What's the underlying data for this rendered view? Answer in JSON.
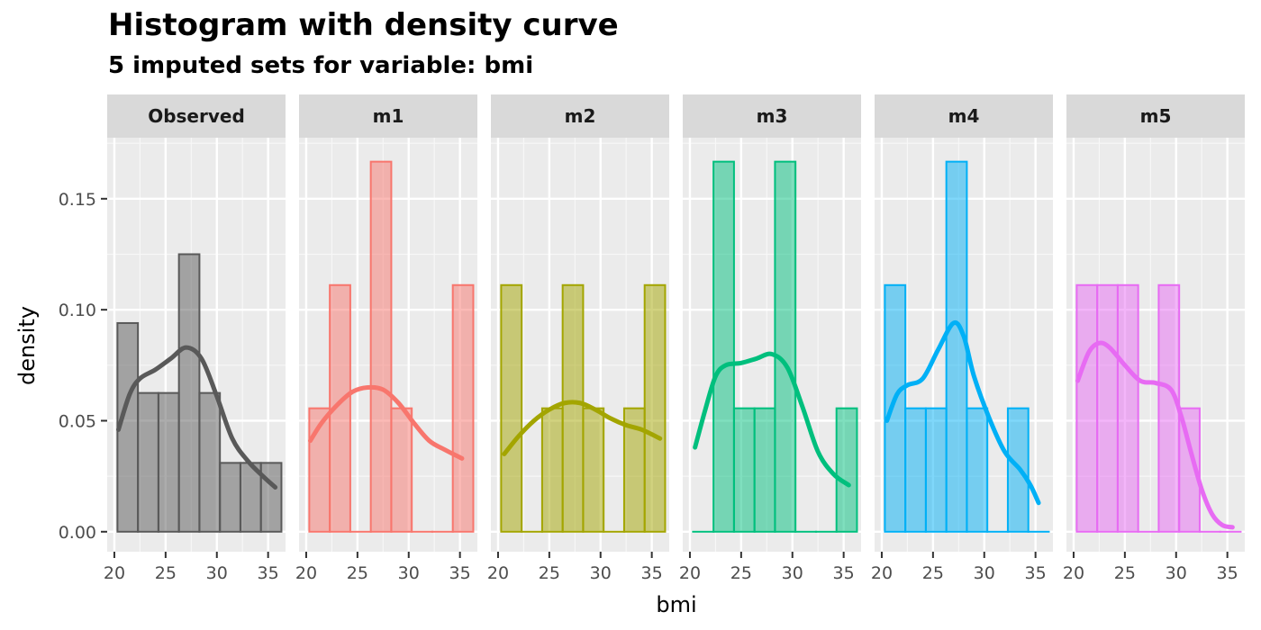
{
  "title": "Histogram with density curve",
  "subtitle": "5  imputed sets for variable:  bmi",
  "chart_data": {
    "type": "bar",
    "xlabel": "bmi",
    "ylabel": "density",
    "xlim": [
      19.3,
      36.7
    ],
    "ylim": [
      -0.009,
      0.1775
    ],
    "x_ticks": [
      20,
      25,
      30,
      35
    ],
    "y_ticks": [
      0.0,
      0.05,
      0.1,
      0.15
    ],
    "y_tick_labels": [
      "0.00",
      "0.05",
      "0.10",
      "0.15"
    ],
    "grid": true,
    "bin_width": 2,
    "panels": [
      {
        "name": "Observed",
        "color": "#595959",
        "bins": [
          {
            "x0": 20.3,
            "x1": 22.3,
            "y": 0.094
          },
          {
            "x0": 22.3,
            "x1": 24.3,
            "y": 0.0625
          },
          {
            "x0": 24.3,
            "x1": 26.3,
            "y": 0.0625
          },
          {
            "x0": 26.3,
            "x1": 28.3,
            "y": 0.125
          },
          {
            "x0": 28.3,
            "x1": 30.3,
            "y": 0.0625
          },
          {
            "x0": 30.3,
            "x1": 32.3,
            "y": 0.031
          },
          {
            "x0": 32.3,
            "x1": 34.3,
            "y": 0.031
          },
          {
            "x0": 34.3,
            "x1": 36.3,
            "y": 0.031
          }
        ],
        "density": [
          [
            20.4,
            0.046
          ],
          [
            21.5,
            0.062
          ],
          [
            22.5,
            0.069
          ],
          [
            24.0,
            0.073
          ],
          [
            25.5,
            0.078
          ],
          [
            27.0,
            0.083
          ],
          [
            28.5,
            0.078
          ],
          [
            30.0,
            0.061
          ],
          [
            31.5,
            0.042
          ],
          [
            33.0,
            0.032
          ],
          [
            34.5,
            0.025
          ],
          [
            35.7,
            0.02
          ]
        ]
      },
      {
        "name": "m1",
        "color": "#F8766D",
        "bins": [
          {
            "x0": 20.3,
            "x1": 22.3,
            "y": 0.0556
          },
          {
            "x0": 22.3,
            "x1": 24.3,
            "y": 0.1111
          },
          {
            "x0": 24.3,
            "x1": 26.3,
            "y": 0
          },
          {
            "x0": 26.3,
            "x1": 28.3,
            "y": 0.1667
          },
          {
            "x0": 28.3,
            "x1": 30.3,
            "y": 0.0556
          },
          {
            "x0": 30.3,
            "x1": 32.3,
            "y": 0
          },
          {
            "x0": 32.3,
            "x1": 34.3,
            "y": 0
          },
          {
            "x0": 34.3,
            "x1": 36.3,
            "y": 0.1111
          }
        ],
        "density": [
          [
            20.4,
            0.041
          ],
          [
            21.5,
            0.049
          ],
          [
            23.0,
            0.057
          ],
          [
            24.5,
            0.063
          ],
          [
            26.0,
            0.065
          ],
          [
            27.5,
            0.064
          ],
          [
            29.0,
            0.058
          ],
          [
            30.5,
            0.049
          ],
          [
            32.0,
            0.041
          ],
          [
            33.5,
            0.037
          ],
          [
            35.2,
            0.033
          ]
        ]
      },
      {
        "name": "m2",
        "color": "#A3A500",
        "bins": [
          {
            "x0": 20.3,
            "x1": 22.3,
            "y": 0.1111
          },
          {
            "x0": 22.3,
            "x1": 24.3,
            "y": 0
          },
          {
            "x0": 24.3,
            "x1": 26.3,
            "y": 0.0556
          },
          {
            "x0": 26.3,
            "x1": 28.3,
            "y": 0.1111
          },
          {
            "x0": 28.3,
            "x1": 30.3,
            "y": 0.0556
          },
          {
            "x0": 30.3,
            "x1": 32.3,
            "y": 0
          },
          {
            "x0": 32.3,
            "x1": 34.3,
            "y": 0.0556
          },
          {
            "x0": 34.3,
            "x1": 36.3,
            "y": 0.1111
          }
        ],
        "density": [
          [
            20.6,
            0.035
          ],
          [
            22.0,
            0.043
          ],
          [
            23.5,
            0.05
          ],
          [
            25.0,
            0.055
          ],
          [
            26.5,
            0.058
          ],
          [
            28.0,
            0.058
          ],
          [
            29.5,
            0.055
          ],
          [
            31.0,
            0.051
          ],
          [
            32.5,
            0.048
          ],
          [
            34.0,
            0.046
          ],
          [
            35.8,
            0.042
          ]
        ]
      },
      {
        "name": "m3",
        "color": "#00BF7D",
        "bins": [
          {
            "x0": 20.3,
            "x1": 22.3,
            "y": 0
          },
          {
            "x0": 22.3,
            "x1": 24.3,
            "y": 0.1667
          },
          {
            "x0": 24.3,
            "x1": 26.3,
            "y": 0.0556
          },
          {
            "x0": 26.3,
            "x1": 28.3,
            "y": 0.0556
          },
          {
            "x0": 28.3,
            "x1": 30.3,
            "y": 0.1667
          },
          {
            "x0": 30.3,
            "x1": 32.3,
            "y": 0
          },
          {
            "x0": 32.3,
            "x1": 34.3,
            "y": 0
          },
          {
            "x0": 34.3,
            "x1": 36.3,
            "y": 0.0556
          }
        ],
        "density": [
          [
            20.5,
            0.038
          ],
          [
            21.5,
            0.055
          ],
          [
            22.5,
            0.07
          ],
          [
            23.5,
            0.075
          ],
          [
            25.0,
            0.076
          ],
          [
            26.5,
            0.078
          ],
          [
            28.0,
            0.08
          ],
          [
            29.5,
            0.074
          ],
          [
            31.0,
            0.056
          ],
          [
            32.5,
            0.036
          ],
          [
            34.0,
            0.026
          ],
          [
            35.5,
            0.021
          ]
        ]
      },
      {
        "name": "m4",
        "color": "#00B0F6",
        "bins": [
          {
            "x0": 20.3,
            "x1": 22.3,
            "y": 0.1111
          },
          {
            "x0": 22.3,
            "x1": 24.3,
            "y": 0.0556
          },
          {
            "x0": 24.3,
            "x1": 26.3,
            "y": 0.0556
          },
          {
            "x0": 26.3,
            "x1": 28.3,
            "y": 0.1667
          },
          {
            "x0": 28.3,
            "x1": 30.3,
            "y": 0.0556
          },
          {
            "x0": 30.3,
            "x1": 32.3,
            "y": 0
          },
          {
            "x0": 32.3,
            "x1": 34.3,
            "y": 0.0556
          },
          {
            "x0": 34.3,
            "x1": 36.3,
            "y": 0
          }
        ],
        "density": [
          [
            20.5,
            0.05
          ],
          [
            21.5,
            0.062
          ],
          [
            22.5,
            0.066
          ],
          [
            24.0,
            0.069
          ],
          [
            25.5,
            0.082
          ],
          [
            27.0,
            0.094
          ],
          [
            28.0,
            0.088
          ],
          [
            29.0,
            0.07
          ],
          [
            30.5,
            0.051
          ],
          [
            32.0,
            0.036
          ],
          [
            33.5,
            0.028
          ],
          [
            34.5,
            0.021
          ],
          [
            35.3,
            0.013
          ]
        ]
      },
      {
        "name": "m5",
        "color": "#E76BF3",
        "bins": [
          {
            "x0": 20.3,
            "x1": 22.3,
            "y": 0.1111
          },
          {
            "x0": 22.3,
            "x1": 24.3,
            "y": 0.1111
          },
          {
            "x0": 24.3,
            "x1": 26.3,
            "y": 0.1111
          },
          {
            "x0": 26.3,
            "x1": 28.3,
            "y": 0
          },
          {
            "x0": 28.3,
            "x1": 30.3,
            "y": 0.1111
          },
          {
            "x0": 30.3,
            "x1": 32.3,
            "y": 0.0556
          },
          {
            "x0": 32.3,
            "x1": 34.3,
            "y": 0
          },
          {
            "x0": 34.3,
            "x1": 36.3,
            "y": 0
          }
        ],
        "density": [
          [
            20.4,
            0.068
          ],
          [
            21.5,
            0.081
          ],
          [
            22.5,
            0.085
          ],
          [
            23.5,
            0.083
          ],
          [
            25.0,
            0.075
          ],
          [
            26.5,
            0.068
          ],
          [
            28.0,
            0.067
          ],
          [
            29.5,
            0.064
          ],
          [
            30.5,
            0.052
          ],
          [
            31.5,
            0.035
          ],
          [
            32.5,
            0.019
          ],
          [
            33.5,
            0.008
          ],
          [
            34.5,
            0.003
          ],
          [
            35.5,
            0.002
          ]
        ]
      }
    ]
  }
}
